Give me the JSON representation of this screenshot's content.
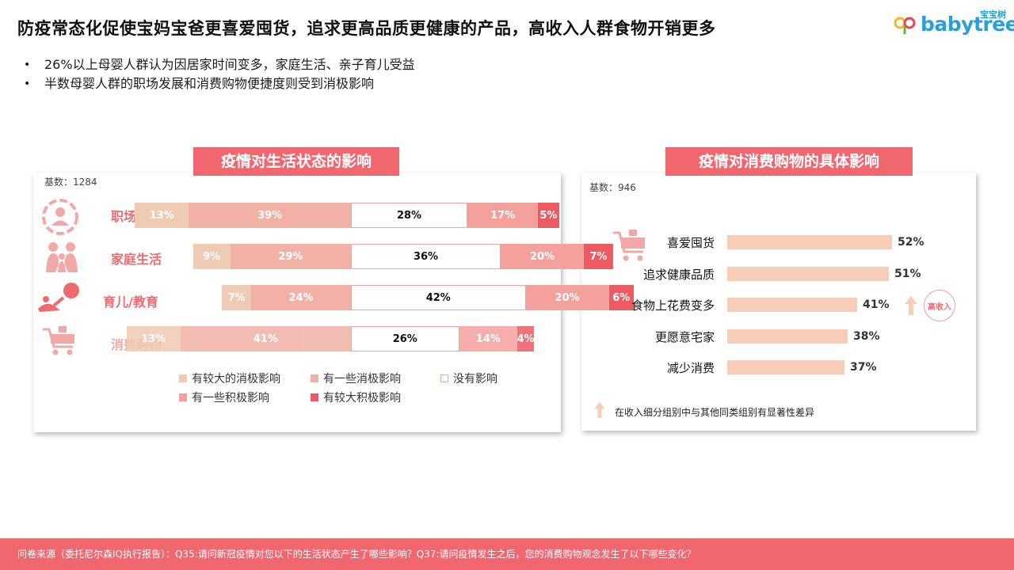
{
  "title": "防疫常态化促使宝妈宝爸更喜爱囤货，追求更高品质更健康的产品，高收入人群食物开销更多",
  "logo": {
    "cn": "宝宝树",
    "en": "babytree"
  },
  "bullets": [
    "26%以上母婴人群认为因居家时间变多，家庭生活、亲子育儿受益",
    "半数母婴人群的职场发展和消费购物便捷度则受到消极影响"
  ],
  "colors": {
    "accent": "#f0676f",
    "big_negative": "#f0cbb4",
    "some_negative": "#f2b1a6",
    "no_impact": "#ffffff",
    "some_positive": "#f4a19d",
    "big_positive": "#ec5a62",
    "hbar": "#f8cdb7"
  },
  "left_panel": {
    "title": "疫情对生活状态的影响",
    "base": "基数：1284",
    "icons": [
      "person-circle-icon",
      "family-icon",
      "parent-child-icon",
      "shopping-cart-icon"
    ],
    "legend": [
      "有较大的消极影响",
      "有一些消极影响",
      "没有影响",
      "有一些积极影响",
      "有较大积极影响"
    ]
  },
  "right_panel": {
    "title": "疫情对消费购物的具体影响",
    "base": "基数：946",
    "icon": "shopping-cart-icon",
    "badge": "高收入",
    "note": "在收入细分组别中与其他同类组别有显著性差异"
  },
  "chart_data": [
    {
      "type": "bar",
      "stacked": true,
      "orientation": "horizontal",
      "title": "疫情对生活状态的影响",
      "categories": [
        "职场发展",
        "家庭生活",
        "育儿/教育",
        "消费购物"
      ],
      "series": [
        {
          "name": "有较大的消极影响",
          "values": [
            13,
            9,
            7,
            13
          ]
        },
        {
          "name": "有一些消极影响",
          "values": [
            39,
            29,
            24,
            41
          ]
        },
        {
          "name": "没有影响",
          "values": [
            28,
            36,
            42,
            26
          ]
        },
        {
          "name": "有一些积极影响",
          "values": [
            17,
            20,
            20,
            14
          ]
        },
        {
          "name": "有较大积极影响",
          "values": [
            5,
            7,
            6,
            4
          ]
        }
      ],
      "unit": "%",
      "legend": "bottom"
    },
    {
      "type": "bar",
      "orientation": "horizontal",
      "title": "疫情对消费购物的具体影响",
      "categories": [
        "喜爱囤货",
        "追求健康品质",
        "食物上花费变多",
        "更愿意宅家",
        "减少消费"
      ],
      "values": [
        52,
        51,
        41,
        38,
        37
      ],
      "unit": "%",
      "highlight": {
        "category": "食物上花费变多",
        "label": "高收入"
      }
    }
  ],
  "footer": "问卷来源（委托尼尔森IQ执行报告）：Q35:请问新冠疫情对您以下的生活状态产生了哪些影响？Q37:请问疫情发生之后，您的消费购物观念发生了以下哪些变化？"
}
